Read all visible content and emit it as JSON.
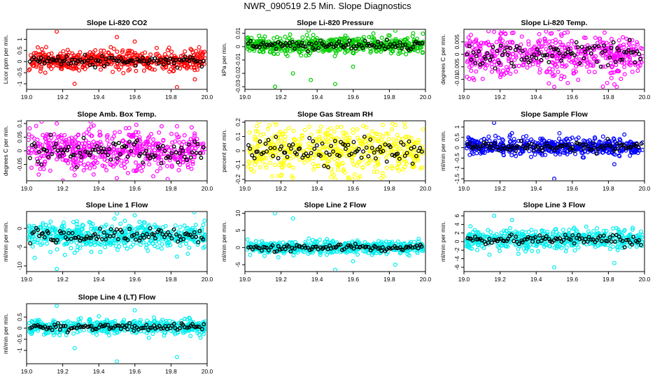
{
  "title": "NWR_090519  2.5 Min. Slope Diagnostics",
  "colors": {
    "overlay": "#000000"
  },
  "chart_data": [
    {
      "type": "scatter",
      "title": "Slope Li-820 CO2",
      "xlabel": "",
      "ylabel": "Licor ppm per min.",
      "xlim": [
        19.0,
        20.0
      ],
      "ylim": [
        -1.25,
        1.45
      ],
      "xticks": [
        19.0,
        19.2,
        19.4,
        19.6,
        19.8,
        20.0
      ],
      "yticks": [
        -1.0,
        -0.5,
        0.0,
        0.5,
        1.0
      ],
      "color": "#ff0000",
      "center": 0.05,
      "spread": 0.22,
      "outliers": [
        1.35,
        1.1,
        -1.15,
        -1.0,
        0.9,
        -0.8
      ]
    },
    {
      "type": "scatter",
      "title": "Slope Li-820 Pressure",
      "xlabel": "",
      "ylabel": "kPa per min.",
      "xlim": [
        19.0,
        20.0
      ],
      "ylim": [
        -0.032,
        0.013
      ],
      "xticks": [
        19.0,
        19.2,
        19.4,
        19.6,
        19.8,
        20.0
      ],
      "yticks": [
        -0.03,
        -0.02,
        -0.01,
        0.0,
        0.01
      ],
      "color": "#00cc00",
      "center": 0.001,
      "spread": 0.003,
      "outliers": [
        -0.03,
        -0.028,
        0.012,
        -0.02,
        -0.015,
        0.01,
        -0.025
      ]
    },
    {
      "type": "scatter",
      "title": "Slope Li-820 Temp.",
      "xlabel": "",
      "ylabel": "degrees C per min.",
      "xlim": [
        19.0,
        20.0
      ],
      "ylim": [
        -0.014,
        0.01
      ],
      "xticks": [
        19.0,
        19.2,
        19.4,
        19.6,
        19.8,
        20.0
      ],
      "yticks": [
        -0.01,
        -0.005,
        0.0,
        0.005
      ],
      "color": "#ff00ff",
      "center": 0.0,
      "spread": 0.0045,
      "outliers": [
        0.009,
        -0.013,
        -0.012,
        0.0085
      ]
    },
    {
      "type": "scatter",
      "title": "Slope Amb. Box Temp.",
      "xlabel": "",
      "ylabel": "degrees C per min.",
      "xlim": [
        19.0,
        20.0
      ],
      "ylim": [
        -0.11,
        0.11
      ],
      "xticks": [
        19.0,
        19.2,
        19.4,
        19.6,
        19.8,
        20.0
      ],
      "yticks": [
        -0.05,
        0.0,
        0.05,
        0.1
      ],
      "color": "#ff00ff",
      "center": 0.0,
      "spread": 0.04,
      "outliers": [
        0.1,
        -0.1,
        0.09,
        -0.09
      ]
    },
    {
      "type": "scatter",
      "title": "Slope Gas Stream RH",
      "xlabel": "",
      "ylabel": "percent per min.",
      "xlim": [
        19.0,
        20.0
      ],
      "ylim": [
        -0.21,
        0.21
      ],
      "xticks": [
        19.0,
        19.2,
        19.4,
        19.6,
        19.8,
        20.0
      ],
      "yticks": [
        -0.2,
        -0.1,
        0.0,
        0.1,
        0.2
      ],
      "color": "#ffff00",
      "center": 0.0,
      "spread": 0.08,
      "outliers": [
        0.2,
        -0.2,
        0.18,
        -0.19
      ]
    },
    {
      "type": "scatter",
      "title": "Slope Sample Flow",
      "xlabel": "",
      "ylabel": "ml/min per min.",
      "xlim": [
        19.0,
        20.0
      ],
      "ylim": [
        -1.6,
        1.3
      ],
      "xticks": [
        19.0,
        19.2,
        19.4,
        19.6,
        19.8,
        20.0
      ],
      "yticks": [
        -1.5,
        -1.0,
        -0.5,
        0.0,
        0.5,
        1.0
      ],
      "color": "#0000ff",
      "center": 0.05,
      "spread": 0.2,
      "outliers": [
        1.2,
        -1.5,
        -0.8,
        0.7
      ]
    },
    {
      "type": "scatter",
      "title": "Slope Line 1 Flow",
      "xlabel": "",
      "ylabel": "ml/min per min.",
      "xlim": [
        19.0,
        20.0
      ],
      "ylim": [
        -11.5,
        4.5
      ],
      "xticks": [
        19.0,
        19.2,
        19.4,
        19.6,
        19.8,
        20.0
      ],
      "yticks": [
        -10,
        -5,
        0
      ],
      "color": "#00eeee",
      "center": -2.0,
      "spread": 1.7,
      "outliers": [
        -10.8,
        4.0,
        -7.5,
        -6.5,
        3.5
      ]
    },
    {
      "type": "scatter",
      "title": "Slope Line 2 Flow",
      "xlabel": "",
      "ylabel": "ml/min per min.",
      "xlim": [
        19.0,
        20.0
      ],
      "ylim": [
        -7.0,
        10.5
      ],
      "xticks": [
        19.0,
        19.2,
        19.4,
        19.6,
        19.8,
        20.0
      ],
      "yticks": [
        -5,
        0,
        5,
        10
      ],
      "color": "#00eeee",
      "center": 0.0,
      "spread": 0.9,
      "outliers": [
        10.0,
        -6.5,
        -5.0,
        8.5,
        -4.0
      ]
    },
    {
      "type": "scatter",
      "title": "Slope Line 3 Flow",
      "xlabel": "",
      "ylabel": "ml/min per min.",
      "xlim": [
        19.0,
        20.0
      ],
      "ylim": [
        -7.0,
        7.0
      ],
      "xticks": [
        19.0,
        19.2,
        19.4,
        19.6,
        19.8,
        20.0
      ],
      "yticks": [
        -6,
        -4,
        -2,
        0,
        2,
        4,
        6
      ],
      "color": "#00eeee",
      "center": 0.5,
      "spread": 1.1,
      "outliers": [
        6.0,
        -6.0,
        -5.0,
        5.0
      ]
    },
    {
      "type": "scatter",
      "title": "Slope Line 4 (LT) Flow",
      "xlabel": "",
      "ylabel": "ml/min per min.",
      "xlim": [
        19.0,
        20.0
      ],
      "ylim": [
        -1.6,
        1.1
      ],
      "xticks": [
        19.0,
        19.2,
        19.4,
        19.6,
        19.8,
        20.0
      ],
      "yticks": [
        -1.0,
        -0.5,
        0.0,
        0.5
      ],
      "color": "#00eeee",
      "center": 0.05,
      "spread": 0.16,
      "outliers": [
        1.0,
        -1.5,
        -1.3,
        -0.9,
        0.8
      ]
    }
  ]
}
